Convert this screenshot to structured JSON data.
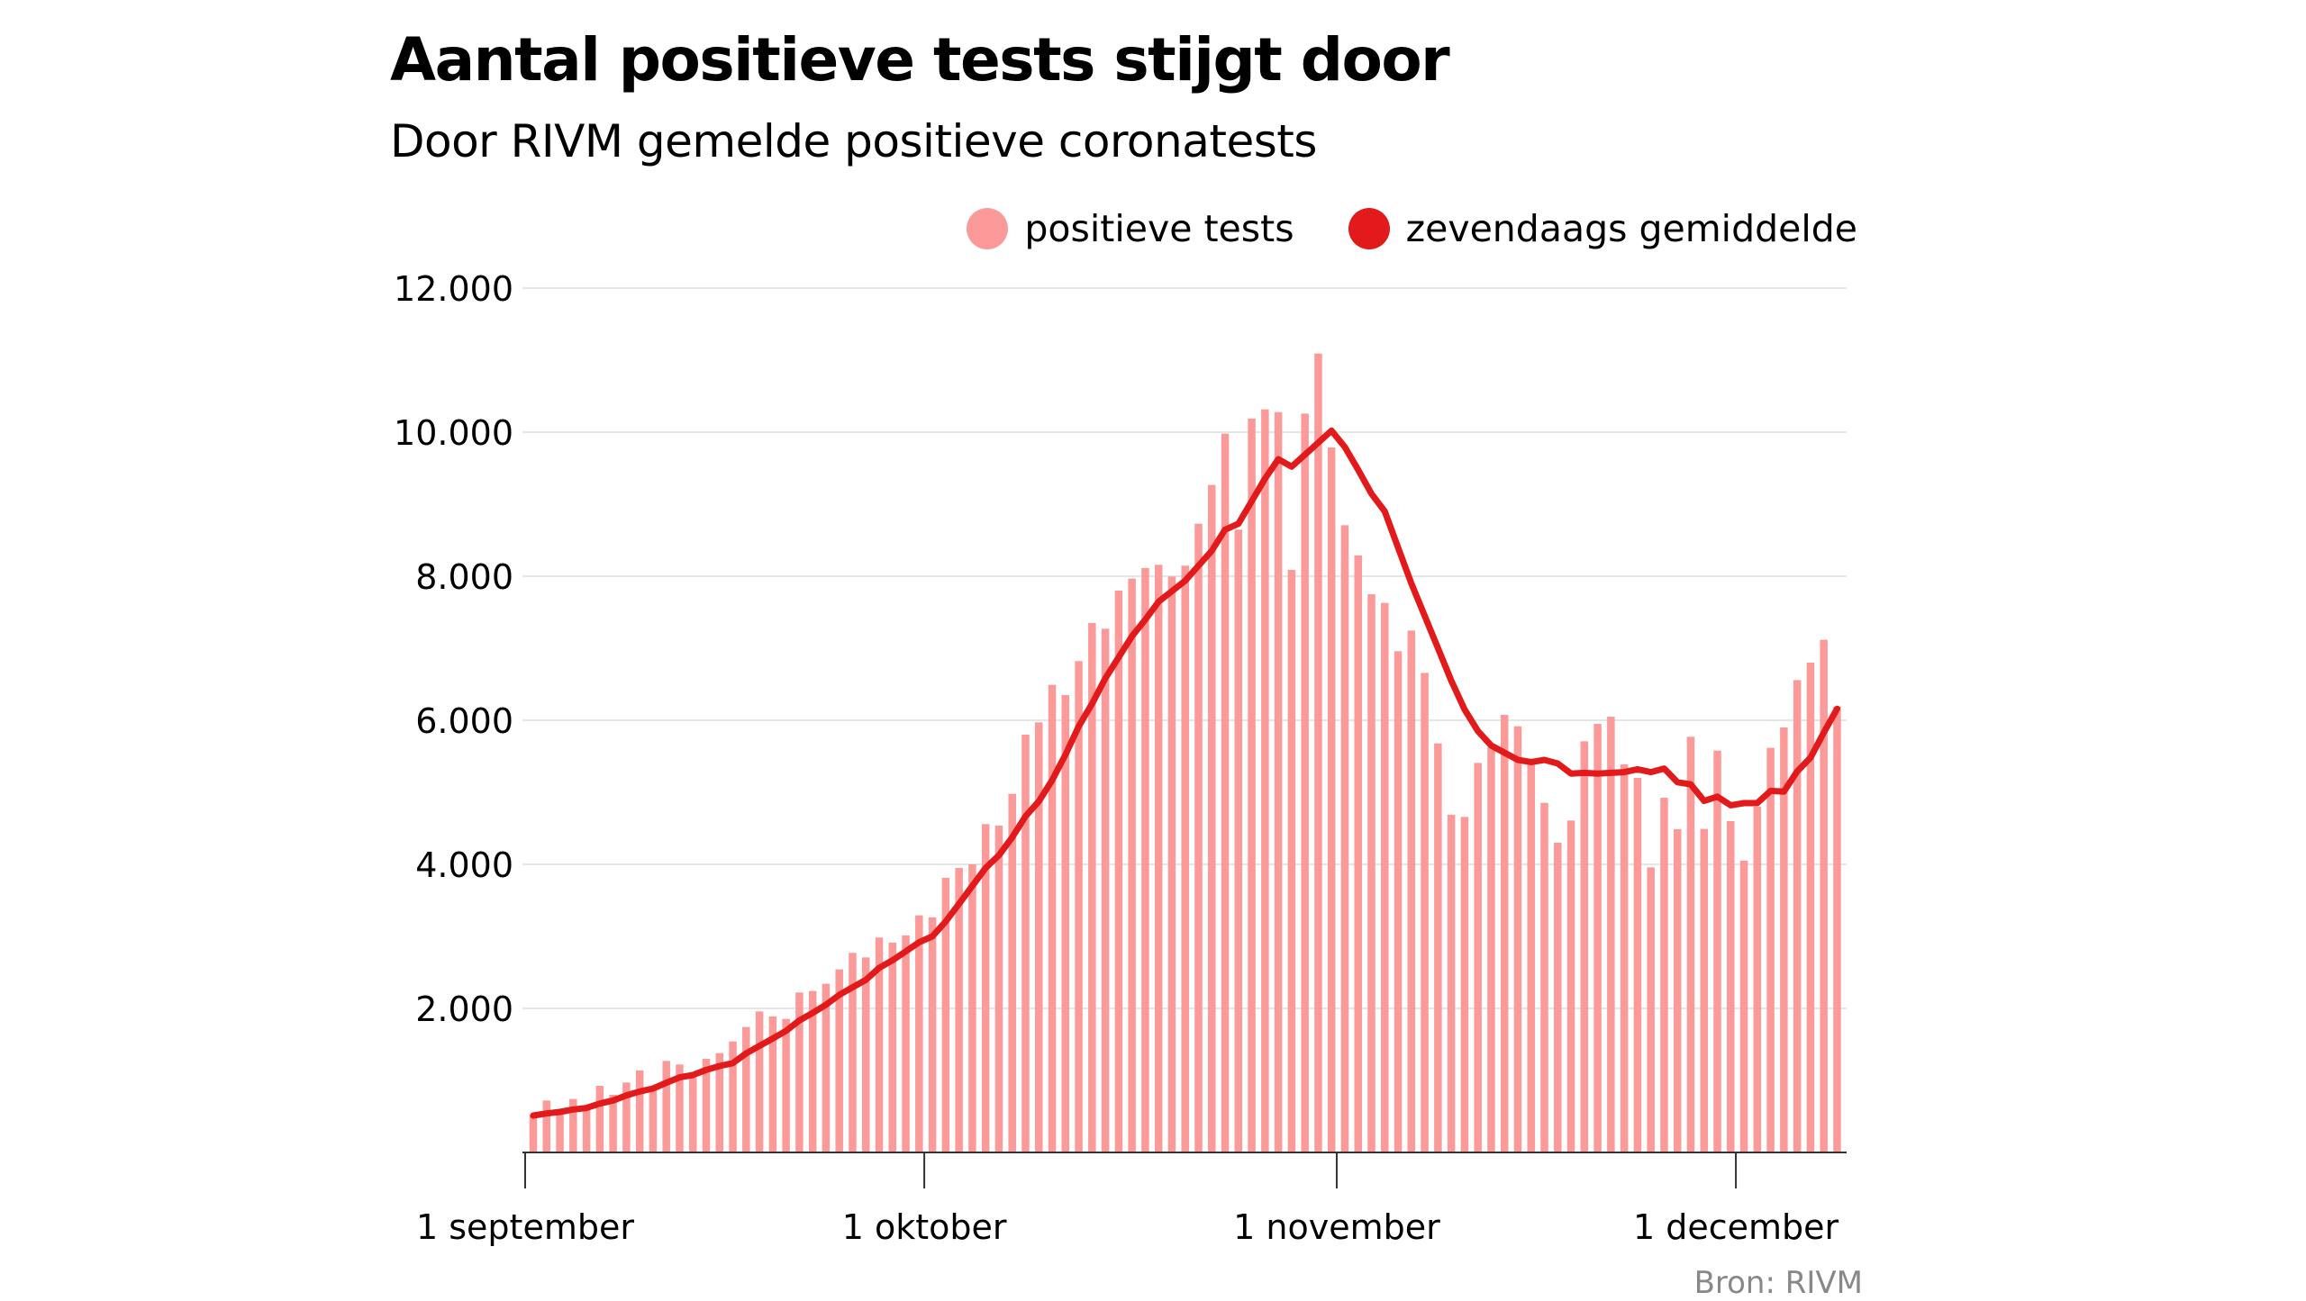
{
  "chart_data": {
    "type": "bar",
    "title": "Aantal positieve tests stijgt door",
    "subtitle": "Door RIVM gemelde positieve coronatests",
    "xlabel": "",
    "ylabel": "",
    "ylim": [
      0,
      12000
    ],
    "yticks": [
      2000,
      4000,
      6000,
      8000,
      10000,
      12000
    ],
    "ytick_labels": [
      "2.000",
      "4.000",
      "6.000",
      "8.000",
      "10.000",
      "12.000"
    ],
    "xtick_labels": [
      {
        "label": "1 september",
        "day_index": 0
      },
      {
        "label": "1 oktober",
        "day_index": 30
      },
      {
        "label": "1 november",
        "day_index": 61
      },
      {
        "label": "1 december",
        "day_index": 91
      }
    ],
    "grid": true,
    "legend_position": "top-right",
    "x_start": "1 september",
    "x_end": "8 december",
    "series": [
      {
        "name": "positieve tests",
        "kind": "bar",
        "color": "#fb9a99",
        "values": [
          525,
          721,
          563,
          742,
          604,
          925,
          800,
          971,
          1138,
          875,
          1271,
          1221,
          1042,
          1300,
          1379,
          1541,
          1742,
          1958,
          1888,
          1854,
          2221,
          2242,
          2342,
          2542,
          2771,
          2708,
          2983,
          2913,
          3013,
          3292,
          3263,
          3813,
          3950,
          4000,
          4558,
          4538,
          4979,
          5800,
          5971,
          6492,
          6350,
          6821,
          7350,
          7271,
          7800,
          7967,
          8113,
          8158,
          7996,
          8146,
          8729,
          9267,
          9979,
          8646,
          10188,
          10317,
          10279,
          8088,
          10258,
          11092,
          9788,
          8708,
          8288,
          7750,
          7629,
          6958,
          7246,
          6658,
          5679,
          4688,
          4658,
          5408,
          5625,
          6075,
          5917,
          5396,
          4854,
          4300,
          4608,
          5708,
          5950,
          6050,
          5388,
          5200,
          3958,
          4925,
          4488,
          5771,
          4492,
          5579,
          4600,
          4050,
          4800,
          5617,
          5900,
          6558,
          6800,
          7117,
          6188
        ]
      },
      {
        "name": "zevendaags gemiddelde",
        "kind": "line",
        "color": "#e31a1c",
        "values": [
          512,
          541,
          563,
          596,
          617,
          679,
          721,
          792,
          846,
          888,
          967,
          1042,
          1075,
          1146,
          1200,
          1240,
          1375,
          1479,
          1583,
          1688,
          1833,
          1938,
          2050,
          2188,
          2292,
          2396,
          2563,
          2667,
          2792,
          2917,
          3000,
          3208,
          3450,
          3700,
          3950,
          4125,
          4375,
          4667,
          4875,
          5167,
          5521,
          5917,
          6229,
          6583,
          6875,
          7167,
          7396,
          7646,
          7792,
          7938,
          8146,
          8354,
          8646,
          8729,
          9042,
          9354,
          9625,
          9521,
          9688,
          9854,
          10021,
          9792,
          9479,
          9146,
          8900,
          8400,
          7900,
          7450,
          7000,
          6550,
          6150,
          5850,
          5650,
          5550,
          5450,
          5420,
          5450,
          5400,
          5260,
          5270,
          5260,
          5270,
          5280,
          5320,
          5280,
          5330,
          5140,
          5110,
          4880,
          4940,
          4820,
          4850,
          4850,
          5020,
          5010,
          5290,
          5480,
          5830,
          6160
        ]
      }
    ],
    "source": "Bron: RIVM"
  },
  "legend": [
    {
      "label": "positieve tests",
      "color": "#fb9a99"
    },
    {
      "label": "zevendaags gemiddelde",
      "color": "#e31a1c"
    }
  ]
}
